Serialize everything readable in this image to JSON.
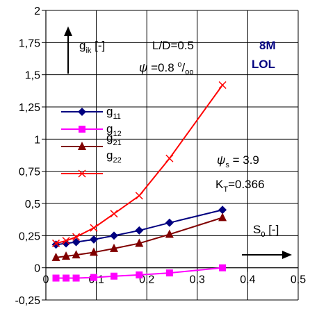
{
  "chart_data": {
    "type": "line",
    "xlim": [
      0,
      0.5
    ],
    "ylim": [
      -0.25,
      2
    ],
    "x_ticks": [
      "0",
      "0,1",
      "0,2",
      "0,3",
      "0,4",
      "0,5"
    ],
    "y_ticks": [
      "-0,25",
      "0",
      "0,25",
      "0,5",
      "0,75",
      "1",
      "1,25",
      "1,5",
      "1,75",
      "2"
    ],
    "grid": true,
    "legend_position": "left",
    "series": [
      {
        "name_main": "g",
        "name_sub": "11",
        "color": "#000080",
        "marker": "diamond",
        "x": [
          0.02,
          0.04,
          0.06,
          0.095,
          0.135,
          0.185,
          0.245,
          0.35
        ],
        "y": [
          0.18,
          0.19,
          0.2,
          0.22,
          0.25,
          0.29,
          0.35,
          0.45
        ]
      },
      {
        "name_main": "g",
        "name_sub": "12",
        "color": "#FF00FF",
        "marker": "square",
        "x": [
          0.02,
          0.04,
          0.06,
          0.095,
          0.135,
          0.185,
          0.245,
          0.35
        ],
        "y": [
          -0.08,
          -0.08,
          -0.08,
          -0.075,
          -0.065,
          -0.055,
          -0.04,
          0.0
        ]
      },
      {
        "name_main": "g",
        "name_sub": "21",
        "color": "#800000",
        "marker": "triangle",
        "x": [
          0.02,
          0.04,
          0.06,
          0.095,
          0.135,
          0.185,
          0.245,
          0.35
        ],
        "y": [
          0.08,
          0.09,
          0.1,
          0.12,
          0.15,
          0.19,
          0.26,
          0.39
        ]
      },
      {
        "name_main": "g",
        "name_sub": "22",
        "color": "#FF0000",
        "marker": "x",
        "x": [
          0.02,
          0.04,
          0.06,
          0.095,
          0.135,
          0.185,
          0.245,
          0.35
        ],
        "y": [
          0.19,
          0.21,
          0.24,
          0.31,
          0.42,
          0.56,
          0.85,
          1.42
        ]
      }
    ],
    "annotations": {
      "y_axis_label_main": "g",
      "y_axis_label_sub": "ik",
      "y_axis_label_unit": " [-]",
      "ld": "L/D=0.5",
      "psi_sym": "ψ",
      "psi_value": " =0.8 ",
      "psi_unit_sup": "o",
      "psi_unit_mid": "/",
      "psi_unit_sub": "oo",
      "model_line1": "8M",
      "model_line2": "LOL",
      "psi_s_sym": "ψ",
      "psi_s_sub": "s",
      "psi_s_value": " = 3.9",
      "kt_main": "K",
      "kt_sub": "T",
      "kt_value": "=0.366",
      "x_axis_label_main": "S",
      "x_axis_label_sub": "0",
      "x_axis_label_unit": " [-]"
    }
  }
}
